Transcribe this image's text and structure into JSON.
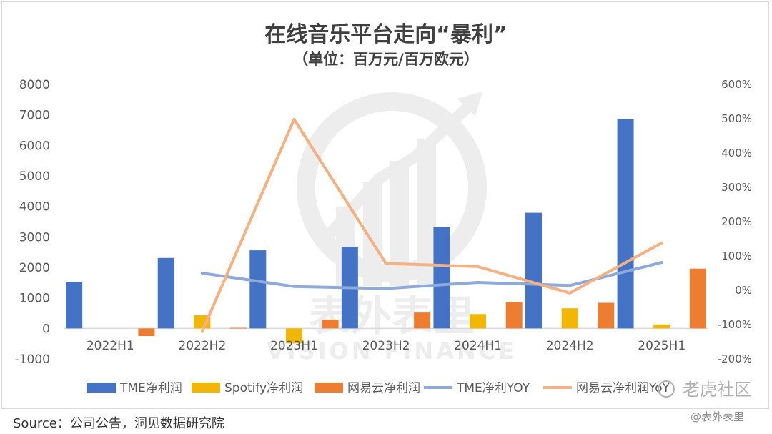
{
  "chart_data": {
    "type": "bar",
    "title": "在线音乐平台走向“暴利”",
    "subtitle": "（单位：百万元/百万欧元）",
    "categories": [
      "2022H1",
      "2022H2",
      "2023H1",
      "2023H2",
      "2024H1",
      "2024H2",
      "2025H1"
    ],
    "bar_series": [
      {
        "name": "TME净利润",
        "color": "#4472C4",
        "values": [
          1530,
          2310,
          2560,
          2680,
          3320,
          3790,
          6860
        ]
      },
      {
        "name": "Spotify净利润",
        "color": "#F2B705",
        "values": [
          null,
          430,
          -490,
          null,
          470,
          660,
          130
        ]
      },
      {
        "name": "网易云净利润",
        "color": "#ED7D31",
        "values": [
          -250,
          20,
          290,
          520,
          870,
          840,
          1960
        ]
      }
    ],
    "line_series": [
      {
        "name": "TME净利YOY",
        "color": "#8EA9DB",
        "values": [
          null,
          0.5,
          0.11,
          0.05,
          0.23,
          0.14,
          0.81
        ]
      },
      {
        "name": "网易云净利润YoY",
        "color": "#F4B183",
        "values": [
          null,
          -1.2,
          4.98,
          0.78,
          0.69,
          -0.08,
          1.38
        ]
      }
    ],
    "y_left": {
      "min": -1000,
      "max": 8000,
      "ticks": [
        -1000,
        0,
        1000,
        2000,
        3000,
        4000,
        5000,
        6000,
        7000,
        8000
      ]
    },
    "y_right": {
      "min": -2,
      "max": 6,
      "ticks": [
        -2,
        -1,
        0,
        1,
        2,
        3,
        4,
        5,
        6
      ],
      "tick_labels": [
        "-200%",
        "-100%",
        "0%",
        "100%",
        "200%",
        "300%",
        "400%",
        "500%",
        "600%"
      ]
    },
    "legend_position": "bottom",
    "grid": false
  },
  "watermark": {
    "logo_text": "表外表里",
    "logo_text_en": "VISION FINANCE",
    "corner_1": "老虎社区",
    "corner_2": "@表外表里"
  },
  "source": "Source：公司公告，洞见数据研究院"
}
